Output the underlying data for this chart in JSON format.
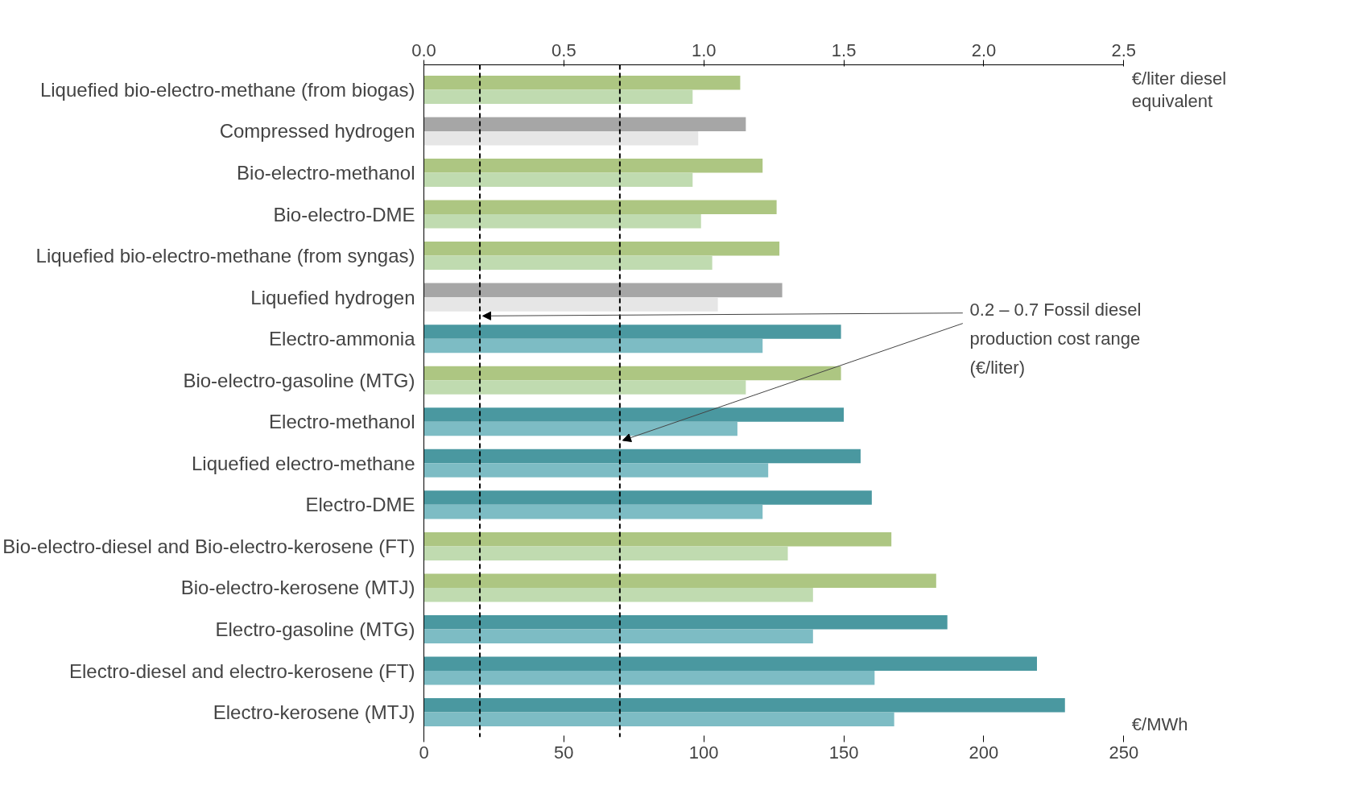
{
  "chart_data": {
    "type": "bar",
    "orientation": "horizontal",
    "categories": [
      "Liquefied bio-electro-methane (from biogas)",
      "Compressed hydrogen",
      "Bio-electro-methanol",
      "Bio-electro-DME",
      "Liquefied bio-electro-methane (from syngas)",
      "Liquefied hydrogen",
      "Electro-ammonia",
      "Bio-electro-gasoline (MTG)",
      "Electro-methanol",
      "Liquefied electro-methane",
      "Electro-DME",
      "Bio-electro-diesel and Bio-electro-kerosene (FT)",
      "Bio-electro-kerosene (MTJ)",
      "Electro-gasoline (MTG)",
      "Electro-diesel and electro-kerosene (FT)",
      "Electro-kerosene (MTJ)"
    ],
    "series": [
      {
        "colors": [
          "#adc682",
          "#a6a6a6",
          "#adc682",
          "#adc682",
          "#adc682",
          "#a6a6a6",
          "#4a98a0",
          "#adc682",
          "#4a98a0",
          "#4a98a0",
          "#4a98a0",
          "#adc682",
          "#adc682",
          "#4a98a0",
          "#4a98a0",
          "#4a98a0"
        ],
        "values": [
          113,
          115,
          121,
          126,
          127,
          128,
          149,
          149,
          150,
          156,
          160,
          167,
          183,
          187,
          219,
          229
        ]
      },
      {
        "colors": [
          "#c0dbb0",
          "#e6e6e6",
          "#c0dbb0",
          "#c0dbb0",
          "#c0dbb0",
          "#e6e6e6",
          "#7dbcc4",
          "#c0dbb0",
          "#7dbcc4",
          "#7dbcc4",
          "#7dbcc4",
          "#c0dbb0",
          "#c0dbb0",
          "#7dbcc4",
          "#7dbcc4",
          "#7dbcc4"
        ],
        "values": [
          96,
          98,
          96,
          99,
          103,
          105,
          121,
          115,
          112,
          123,
          121,
          130,
          139,
          139,
          161,
          168
        ]
      }
    ],
    "xlim": [
      0,
      250
    ],
    "xticks": [
      0,
      50,
      100,
      150,
      200,
      250
    ],
    "xlabel": "€/MWh",
    "x2lim": [
      0,
      2.5
    ],
    "x2ticks": [
      {
        "value": 0,
        "label": "0.0"
      },
      0.5,
      {
        "value": 1,
        "label": "1.0"
      },
      1.5,
      {
        "value": 2,
        "label": "2.0"
      },
      2.5
    ],
    "x2label": "€/liter diesel equivalent",
    "ref_lines": [
      {
        "axis": "x",
        "value": 20,
        "color": "#000000",
        "line_style": "dashed"
      },
      {
        "axis": "x",
        "value": 70,
        "color": "#000000",
        "line_style": "dashed"
      }
    ],
    "annotations": [
      "0.2 – 0.7 Fossil diesel production cost range (€/liter)"
    ],
    "grid": false
  }
}
